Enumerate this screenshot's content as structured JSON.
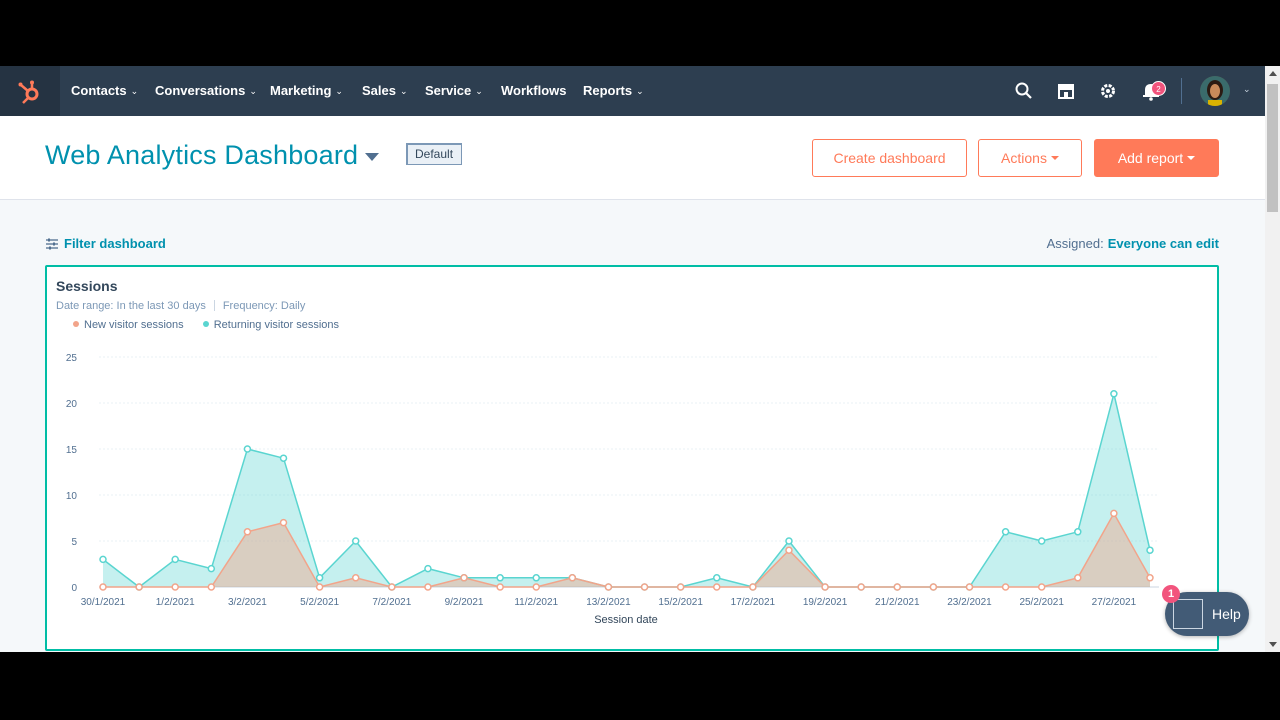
{
  "nav": {
    "items": [
      {
        "label": "Contacts",
        "has_menu": true
      },
      {
        "label": "Conversations",
        "has_menu": true
      },
      {
        "label": "Marketing",
        "has_menu": true
      },
      {
        "label": "Sales",
        "has_menu": true
      },
      {
        "label": "Service",
        "has_menu": true
      },
      {
        "label": "Workflows",
        "has_menu": false
      },
      {
        "label": "Reports",
        "has_menu": true
      }
    ],
    "notification_count": "2",
    "icons": [
      "search-icon",
      "marketplace-icon",
      "settings-icon",
      "notifications-icon"
    ]
  },
  "header": {
    "title": "Web Analytics Dashboard",
    "badge": "Default",
    "create_label": "Create dashboard",
    "actions_label": "Actions",
    "add_report_label": "Add report"
  },
  "filter": {
    "label": "Filter dashboard",
    "assigned_label": "Assigned:",
    "assigned_value": "Everyone can edit"
  },
  "card": {
    "title": "Sessions",
    "date_range": "Date range:  In the last 30 days",
    "frequency": "Frequency:  Daily"
  },
  "help": {
    "label": "Help",
    "badge": "1"
  },
  "colors": {
    "nav_bg": "#2d3e50",
    "accent": "#0091ae",
    "cta": "#ff7a59",
    "new_series": "#f2a48a",
    "returning_series": "#5ad5d0"
  },
  "chart_data": {
    "type": "area",
    "xlabel": "Session date",
    "ylabel": "",
    "ylim": [
      0,
      25
    ],
    "yticks": [
      0,
      5,
      10,
      15,
      20,
      25
    ],
    "x": [
      "30/1/2021",
      "31/1/2021",
      "1/2/2021",
      "2/2/2021",
      "3/2/2021",
      "4/2/2021",
      "5/2/2021",
      "6/2/2021",
      "7/2/2021",
      "8/2/2021",
      "9/2/2021",
      "10/2/2021",
      "11/2/2021",
      "12/2/2021",
      "13/2/2021",
      "14/2/2021",
      "15/2/2021",
      "16/2/2021",
      "17/2/2021",
      "18/2/2021",
      "19/2/2021",
      "20/2/2021",
      "21/2/2021",
      "22/2/2021",
      "23/2/2021",
      "24/2/2021",
      "25/2/2021",
      "26/2/2021",
      "27/2/2021",
      "28/2/2021"
    ],
    "xtick_labels": [
      "30/1/2021",
      "1/2/2021",
      "3/2/2021",
      "5/2/2021",
      "7/2/2021",
      "9/2/2021",
      "11/2/2021",
      "13/2/2021",
      "15/2/2021",
      "17/2/2021",
      "19/2/2021",
      "21/2/2021",
      "23/2/2021",
      "25/2/2021",
      "27/2/2021"
    ],
    "series": [
      {
        "name": "New visitor sessions",
        "color": "#f2a48a",
        "values": [
          0,
          0,
          0,
          0,
          6,
          7,
          0,
          1,
          0,
          0,
          1,
          0,
          0,
          1,
          0,
          0,
          0,
          0,
          0,
          4,
          0,
          0,
          0,
          0,
          0,
          0,
          0,
          1,
          8,
          1
        ]
      },
      {
        "name": "Returning visitor sessions",
        "color": "#5ad5d0",
        "values": [
          3,
          0,
          3,
          2,
          15,
          14,
          1,
          5,
          0,
          2,
          1,
          1,
          1,
          1,
          0,
          0,
          0,
          1,
          0,
          5,
          0,
          0,
          0,
          0,
          0,
          6,
          5,
          6,
          21,
          4
        ]
      }
    ],
    "legend_position": "top-left",
    "grid": true
  }
}
